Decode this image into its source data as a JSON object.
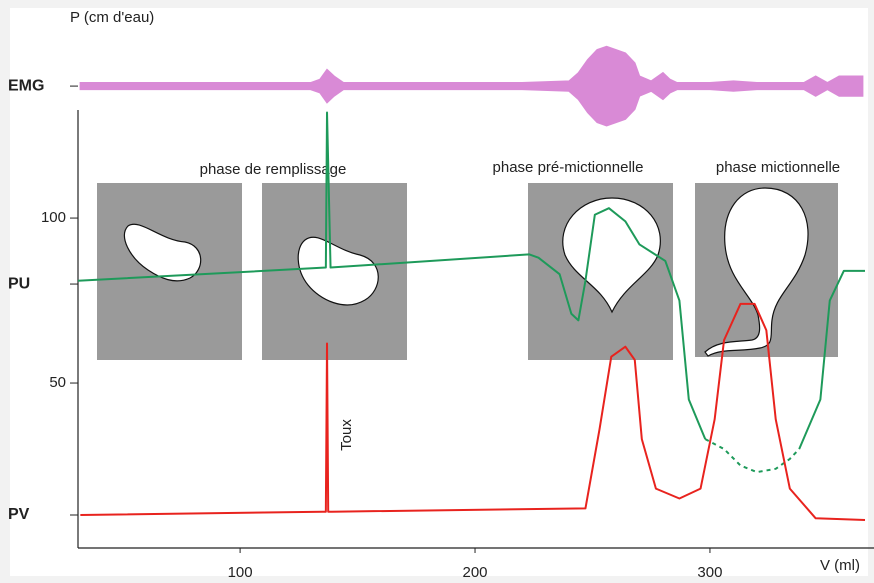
{
  "chart_data": {
    "type": "line",
    "ylabel": "P (cm d'eau)",
    "xlabel": "V (ml)",
    "xlim": [
      31,
      366
    ],
    "ylim": [
      0,
      157
    ],
    "xticks": [
      100,
      200,
      300
    ],
    "yticks": [
      {
        "value": 10,
        "label": "PV"
      },
      50,
      {
        "value": 80,
        "label": "PU"
      },
      100,
      {
        "value": 140,
        "label": "EMG"
      }
    ],
    "annotations": [
      "phase de remplissage",
      "phase pré-mictionnelle",
      "phase mictionnelle",
      "Toux"
    ],
    "series": [
      {
        "color": "#1e9a5a",
        "x": [
          31,
          136.5,
          137,
          138.5,
          223,
          227,
          236,
          241,
          244,
          247,
          251,
          257,
          264,
          270,
          281,
          287,
          291,
          298,
          300,
          338,
          347,
          351,
          357,
          366
        ],
        "values": [
          81,
          85,
          132,
          85,
          89,
          88,
          83,
          71,
          69,
          81,
          101,
          103,
          99,
          92,
          87,
          75,
          45,
          33,
          null,
          30,
          45,
          75,
          84,
          84
        ]
      },
      {
        "color": "#1e9a5a",
        "dotted": true,
        "x": [
          298,
          306,
          313,
          320,
          328,
          334,
          338
        ],
        "values": [
          33,
          30,
          25,
          23,
          24,
          27,
          30
        ]
      },
      {
        "color": "#e8231e",
        "x": [
          32,
          135,
          136.5,
          137,
          137.5,
          139,
          247,
          253,
          258,
          264,
          268,
          271,
          277,
          287,
          296,
          302,
          306,
          313,
          319,
          324,
          328,
          334,
          345,
          366
        ],
        "values": [
          10,
          11,
          11,
          62,
          11,
          11,
          12,
          36,
          58,
          61,
          57,
          33,
          18,
          15,
          18,
          39,
          63,
          74,
          74,
          66,
          39,
          18,
          9,
          8.5
        ]
      },
      {
        "color": "#d98ad6",
        "band": true,
        "x": [
          32,
          60,
          100,
          130,
          134,
          137,
          140,
          144,
          180,
          220,
          240,
          244,
          248,
          252,
          256,
          260,
          264,
          268,
          270,
          275,
          280,
          283,
          286,
          290,
          300,
          310,
          320,
          330,
          340,
          345,
          350,
          355,
          360,
          365
        ],
        "values": [
          1,
          1,
          1,
          1,
          2,
          5,
          3,
          1,
          1,
          1,
          1.5,
          4,
          8,
          11,
          12,
          11,
          10,
          7,
          3,
          1.5,
          4,
          2,
          1,
          1,
          1,
          1.5,
          1,
          1,
          1,
          3,
          1,
          3,
          3,
          3
        ]
      }
    ]
  }
}
